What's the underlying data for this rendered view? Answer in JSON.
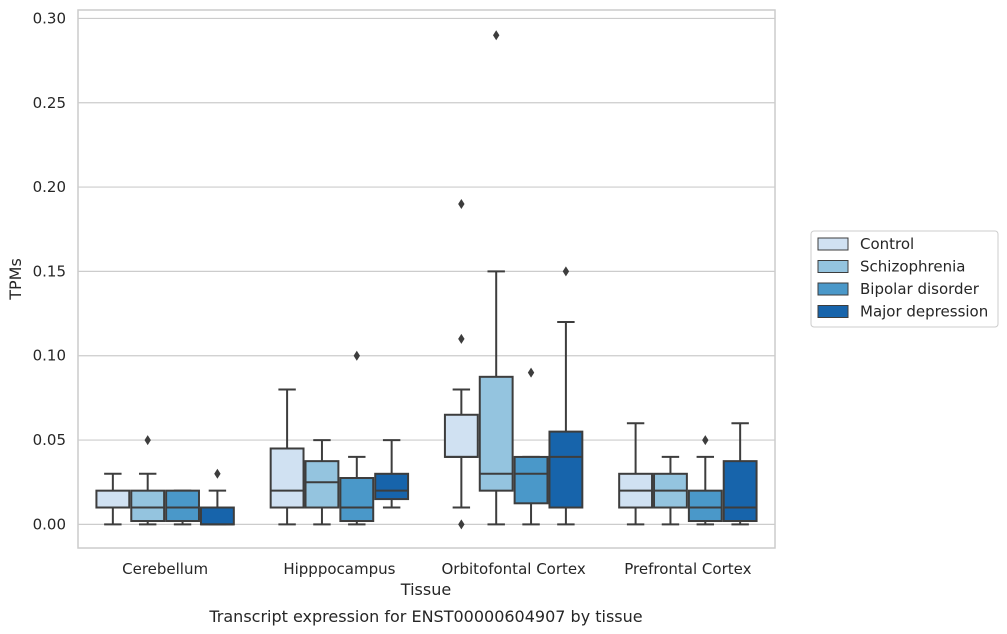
{
  "chart_data": {
    "type": "box",
    "title": "",
    "caption": "Transcript expression for ENST00000604907 by tissue",
    "xlabel": "Tissue",
    "ylabel": "TPMs",
    "ylim": [
      -0.014,
      0.305
    ],
    "yticks": [
      "0.00",
      "0.05",
      "0.10",
      "0.15",
      "0.20",
      "0.25",
      "0.30"
    ],
    "ytick_values": [
      0,
      0.05,
      0.1,
      0.15,
      0.2,
      0.25,
      0.3
    ],
    "grid": "horizontal",
    "legend_position": "right",
    "categories": [
      "Cerebellum",
      "Hipppocampus",
      "Orbitofontal Cortex",
      "Prefrontal Cortex"
    ],
    "series": [
      {
        "name": "Control",
        "color": "#d0e1f2",
        "boxes": [
          {
            "whislo": 0.0,
            "q1": 0.01,
            "med": 0.01,
            "q3": 0.02,
            "whishi": 0.03,
            "fliers": []
          },
          {
            "whislo": 0.0,
            "q1": 0.01,
            "med": 0.02,
            "q3": 0.045,
            "whishi": 0.08,
            "fliers": []
          },
          {
            "whislo": 0.01,
            "q1": 0.04,
            "med": 0.04,
            "q3": 0.065,
            "whishi": 0.08,
            "fliers": [
              0.0,
              0.11,
              0.19
            ]
          },
          {
            "whislo": 0.0,
            "q1": 0.01,
            "med": 0.02,
            "q3": 0.03,
            "whishi": 0.06,
            "fliers": []
          }
        ]
      },
      {
        "name": "Schizophrenia",
        "color": "#94c4df",
        "boxes": [
          {
            "whislo": 0.0,
            "q1": 0.002,
            "med": 0.01,
            "q3": 0.02,
            "whishi": 0.03,
            "fliers": [
              0.05
            ]
          },
          {
            "whislo": 0.0,
            "q1": 0.01,
            "med": 0.025,
            "q3": 0.0375,
            "whishi": 0.05,
            "fliers": []
          },
          {
            "whislo": 0.0,
            "q1": 0.02,
            "med": 0.03,
            "q3": 0.0875,
            "whishi": 0.15,
            "fliers": [
              0.29
            ]
          },
          {
            "whislo": 0.0,
            "q1": 0.01,
            "med": 0.02,
            "q3": 0.03,
            "whishi": 0.04,
            "fliers": []
          }
        ]
      },
      {
        "name": "Bipolar disorder",
        "color": "#4a98c9",
        "boxes": [
          {
            "whislo": 0.0,
            "q1": 0.002,
            "med": 0.01,
            "q3": 0.02,
            "whishi": 0.02,
            "fliers": []
          },
          {
            "whislo": 0.0,
            "q1": 0.002,
            "med": 0.01,
            "q3": 0.0275,
            "whishi": 0.04,
            "fliers": [
              0.1
            ]
          },
          {
            "whislo": 0.0,
            "q1": 0.0125,
            "med": 0.03,
            "q3": 0.04,
            "whishi": 0.04,
            "fliers": [
              0.09
            ]
          },
          {
            "whislo": 0.0,
            "q1": 0.002,
            "med": 0.01,
            "q3": 0.02,
            "whishi": 0.04,
            "fliers": [
              0.05
            ]
          }
        ]
      },
      {
        "name": "Major depression",
        "color": "#1764ab",
        "boxes": [
          {
            "whislo": 0.0,
            "q1": 0.0,
            "med": 0.0,
            "q3": 0.01,
            "whishi": 0.02,
            "fliers": [
              0.03
            ]
          },
          {
            "whislo": 0.01,
            "q1": 0.015,
            "med": 0.02,
            "q3": 0.03,
            "whishi": 0.05,
            "fliers": []
          },
          {
            "whislo": 0.0,
            "q1": 0.01,
            "med": 0.04,
            "q3": 0.055,
            "whishi": 0.12,
            "fliers": [
              0.15
            ]
          },
          {
            "whislo": 0.0,
            "q1": 0.002,
            "med": 0.01,
            "q3": 0.0375,
            "whishi": 0.06,
            "fliers": []
          }
        ]
      }
    ]
  }
}
